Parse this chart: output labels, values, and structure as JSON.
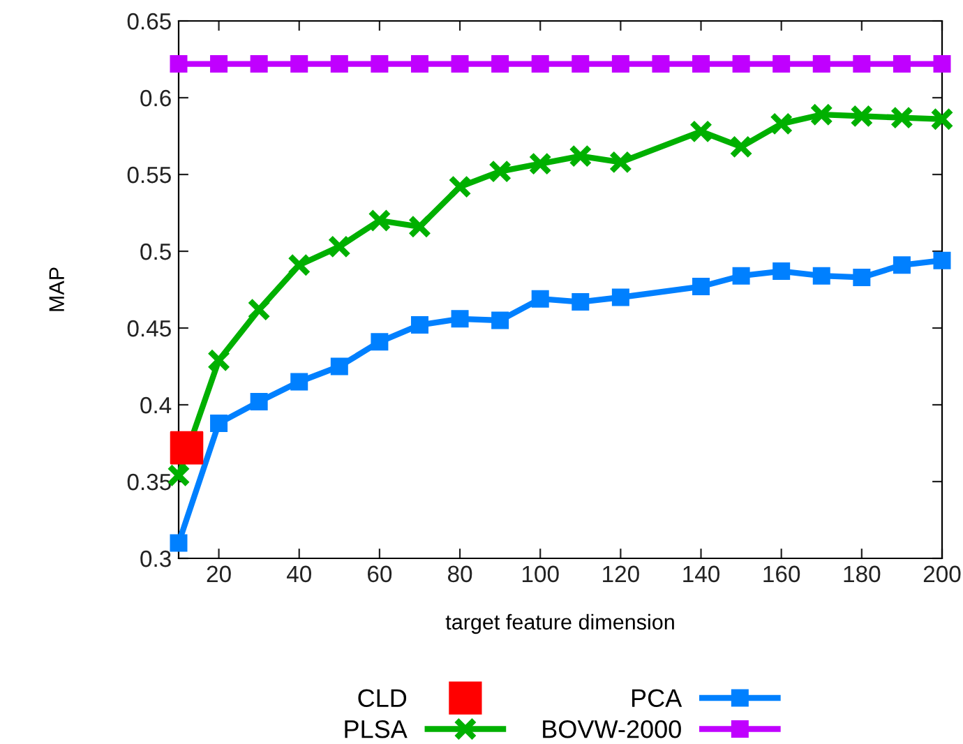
{
  "chart_data": {
    "type": "line",
    "xlabel": "target feature dimension",
    "ylabel": "MAP",
    "xlim": [
      10,
      200
    ],
    "xticks": [
      20,
      40,
      60,
      80,
      100,
      120,
      140,
      160,
      180,
      200
    ],
    "ylim": [
      0.3,
      0.65
    ],
    "yticks": [
      0.3,
      0.35,
      0.4,
      0.45,
      0.5,
      0.55,
      0.6,
      0.65
    ],
    "grid": false,
    "legend": "bottom",
    "series": [
      {
        "name": "CLD",
        "type": "scatter",
        "marker": "square",
        "color": "#ff0000",
        "x": [
          12
        ],
        "values": [
          0.372
        ]
      },
      {
        "name": "PLSA",
        "marker": "cross",
        "color": "#00b000",
        "x": [
          10,
          20,
          30,
          40,
          50,
          60,
          70,
          80,
          90,
          100,
          110,
          120,
          140,
          150,
          160,
          170,
          180,
          190,
          200
        ],
        "values": [
          0.354,
          0.429,
          0.462,
          0.491,
          0.503,
          0.52,
          0.516,
          0.542,
          0.552,
          0.557,
          0.562,
          0.558,
          0.578,
          0.568,
          0.583,
          0.589,
          0.588,
          0.587,
          0.586
        ]
      },
      {
        "name": "PCA",
        "marker": "square",
        "color": "#0080ff",
        "x": [
          10,
          20,
          30,
          40,
          50,
          60,
          70,
          80,
          90,
          100,
          110,
          120,
          140,
          150,
          160,
          170,
          180,
          190,
          200
        ],
        "values": [
          0.31,
          0.388,
          0.402,
          0.415,
          0.425,
          0.441,
          0.452,
          0.456,
          0.455,
          0.469,
          0.467,
          0.47,
          0.477,
          0.484,
          0.487,
          0.484,
          0.483,
          0.491,
          0.494
        ]
      },
      {
        "name": "BOVW-2000",
        "marker": "square",
        "color": "#c000ff",
        "x": [
          10,
          20,
          30,
          40,
          50,
          60,
          70,
          80,
          90,
          100,
          110,
          120,
          130,
          140,
          150,
          160,
          170,
          180,
          190,
          200
        ],
        "values": [
          0.622,
          0.622,
          0.622,
          0.622,
          0.622,
          0.622,
          0.622,
          0.622,
          0.622,
          0.622,
          0.622,
          0.622,
          0.622,
          0.622,
          0.622,
          0.622,
          0.622,
          0.622,
          0.622,
          0.622
        ]
      }
    ]
  }
}
